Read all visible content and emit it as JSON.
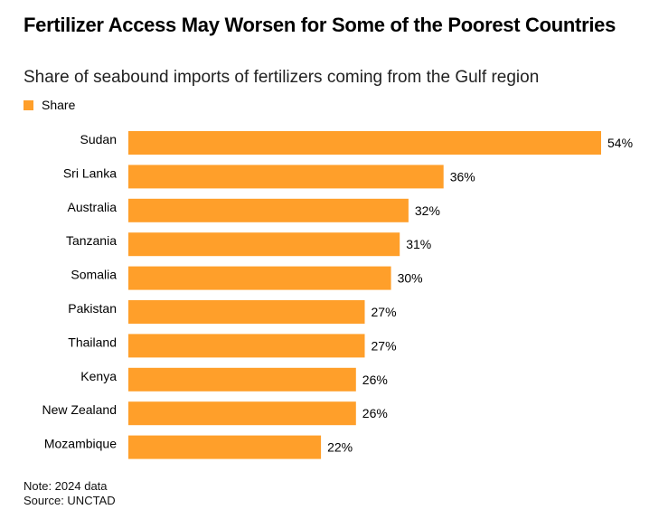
{
  "title": "Fertilizer Access May Worsen for Some of the Poorest Countries",
  "subtitle": "Share of seabound imports of fertilizers coming from the Gulf region",
  "legend": {
    "label": "Share",
    "color": "#FF9F2A"
  },
  "chart_data": {
    "type": "bar",
    "orientation": "horizontal",
    "categories": [
      "Sudan",
      "Sri Lanka",
      "Australia",
      "Tanzania",
      "Somalia",
      "Pakistan",
      "Thailand",
      "Kenya",
      "New Zealand",
      "Mozambique"
    ],
    "series": [
      {
        "name": "Share",
        "values": [
          54,
          36,
          32,
          31,
          30,
          27,
          27,
          26,
          26,
          22
        ],
        "labels": [
          "54%",
          "36%",
          "32%",
          "31%",
          "30%",
          "27%",
          "27%",
          "26%",
          "26%",
          "22%"
        ],
        "color": "#FF9F2A"
      }
    ],
    "xlim": [
      0,
      54
    ],
    "grid": false,
    "legend_position": "top-left"
  },
  "footer": {
    "note": "Note: 2024 data",
    "source": "Source: UNCTAD"
  }
}
